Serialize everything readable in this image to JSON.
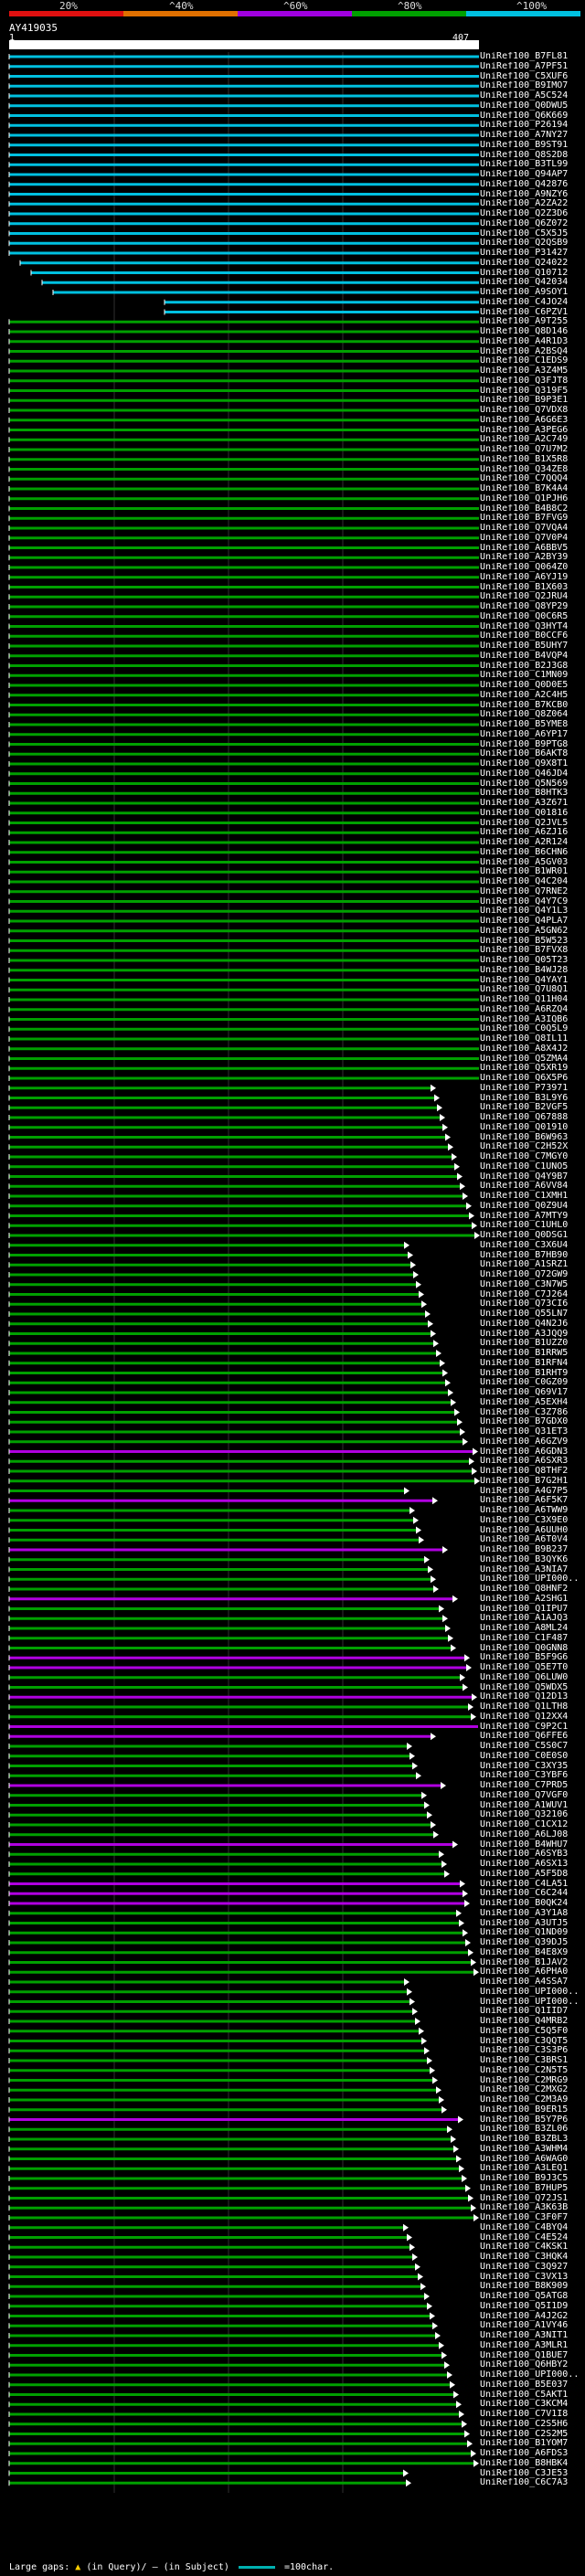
{
  "legend": {
    "labels": [
      "20%",
      "^40%",
      "^60%",
      "^80%",
      "^100%"
    ],
    "colors": [
      "#e01010",
      "#e07000",
      "#a000e0",
      "#00a000",
      "#00c0e0"
    ]
  },
  "query": {
    "title": "AY419035",
    "start": "1",
    "end": "407"
  },
  "hits": [
    "UniRef100_B7FL81",
    "UniRef100_A7PF51",
    "UniRef100_C5XUF6",
    "UniRef100_B9IMO7",
    "UniRef100_A5C524",
    "UniRef100_Q0DWU5",
    "UniRef100_Q6K669",
    "UniRef100_P26194",
    "UniRef100_A7NY27",
    "UniRef100_B9ST91",
    "UniRef100_Q8S2D8",
    "UniRef100_B3TL99",
    "UniRef100_Q94AP7",
    "UniRef100_Q42876",
    "UniRef100_A9NZY6",
    "UniRef100_A2ZA22",
    "UniRef100_Q2Z3D6",
    "UniRef100_Q6Z072",
    "UniRef100_C5X5J5",
    "UniRef100_Q2QSB9",
    "UniRef100_P31427",
    "UniRef100_Q24022",
    "UniRef100_Q10712",
    "UniRef100_Q42034",
    "UniRef100_A9SOY1",
    "UniRef100_C4JO24",
    "UniRef100_C6PZV1",
    "UniRef100_A9T255",
    "UniRef100_Q8D146",
    "UniRef100_A4R1D3",
    "UniRef100_A2BSQ4",
    "UniRef100_C1EDS9",
    "UniRef100_A3Z4M5",
    "UniRef100_Q3FJT8",
    "UniRef100_Q319F5",
    "UniRef100_B9P3E1",
    "UniRef100_Q7VDX8",
    "UniRef100_A6G6E3",
    "UniRef100_A3PEG6",
    "UniRef100_A2C749",
    "UniRef100_Q7U7M2",
    "UniRef100_B1X5R8",
    "UniRef100_Q34ZE8",
    "UniRef100_C7QQQ4",
    "UniRef100_B7K4A4",
    "UniRef100_Q1PJH6",
    "UniRef100_B4B8C2",
    "UniRef100_B7FVG9",
    "UniRef100_Q7VQA4",
    "UniRef100_Q7V0P4",
    "UniRef100_A6BBV5",
    "UniRef100_A2BY39",
    "UniRef100_Q064Z0",
    "UniRef100_A6YJ19",
    "UniRef100_B1X603",
    "UniRef100_Q2JRU4",
    "UniRef100_Q8YP29",
    "UniRef100_Q0C6R5",
    "UniRef100_Q3HYT4",
    "UniRef100_B0CCF6",
    "UniRef100_B5UHY7",
    "UniRef100_B4VQP4",
    "UniRef100_B2J3G8",
    "UniRef100_C1MN09",
    "UniRef100_Q0D0E5",
    "UniRef100_A2C4H5",
    "UniRef100_B7KCB0",
    "UniRef100_Q8Z064",
    "UniRef100_B5YME8",
    "UniRef100_A6YP17",
    "UniRef100_B9PTG8",
    "UniRef100_B6AKT8",
    "UniRef100_Q9X8T1",
    "UniRef100_Q46JD4",
    "UniRef100_Q5N569",
    "UniRef100_B8HTK3",
    "UniRef100_A3Z671",
    "UniRef100_Q01816",
    "UniRef100_Q2JVL5",
    "UniRef100_A6ZJ16",
    "UniRef100_A2R124",
    "UniRef100_B6CHN6",
    "UniRef100_A5GV03",
    "UniRef100_B1WR01",
    "UniRef100_Q4C204",
    "UniRef100_Q7RNE2",
    "UniRef100_Q4Y7C9",
    "UniRef100_Q4Y1L3",
    "UniRef100_Q4PLA7",
    "UniRef100_A5GN62",
    "UniRef100_B5W523",
    "UniRef100_B7FVX8",
    "UniRef100_Q05T23",
    "UniRef100_B4WJ28",
    "UniRef100_Q4YAY1",
    "UniRef100_Q7U8Q1",
    "UniRef100_Q11H04",
    "UniRef100_A6RZQ4",
    "UniRef100_A3IQB6",
    "UniRef100_C0Q5L9",
    "UniRef100_Q8IL11",
    "UniRef100_A8X4J2",
    "UniRef100_Q5ZMA4",
    "UniRef100_Q5XR19",
    "UniRef100_Q6X5P6",
    "UniRef100_P73971",
    "UniRef100_B3L9Y6",
    "UniRef100_B2VGF5",
    "UniRef100_Q67888",
    "UniRef100_Q01910",
    "UniRef100_B6W963",
    "UniRef100_C2H52X",
    "UniRef100_C7MGY0",
    "UniRef100_C1UNO5",
    "UniRef100_Q4Y9B7",
    "UniRef100_A6VV84",
    "UniRef100_C1XMH1",
    "UniRef100_Q0Z9U4",
    "UniRef100_A7MTY9",
    "UniRef100_C1UHL0",
    "UniRef100_Q0DSG1",
    "UniRef100_C3X6U4",
    "UniRef100_B7HB90",
    "UniRef100_A1SRZ1",
    "UniRef100_Q72GW9",
    "UniRef100_C3N7W5",
    "UniRef100_C7J264",
    "UniRef100_Q73CI6",
    "UniRef100_Q55LN7",
    "UniRef100_Q4N2J6",
    "UniRef100_A3JQQ9",
    "UniRef100_B1UZZ0",
    "UniRef100_B1RRW5",
    "UniRef100_B1RFN4",
    "UniRef100_B1RHT9",
    "UniRef100_C0GZ09",
    "UniRef100_Q69V17",
    "UniRef100_A5EXH4",
    "UniRef100_C3Z786",
    "UniRef100_B7GDX0",
    "UniRef100_Q31ET3",
    "UniRef100_A6GZV9",
    "UniRef100_A6GDN3",
    "UniRef100_A6SXR3",
    "UniRef100_Q8THF2",
    "UniRef100_B7G2H1",
    "UniRef100_A4G7P5",
    "UniRef100_A6F5K7",
    "UniRef100_A6TWW9",
    "UniRef100_C3X9E0",
    "UniRef100_A6UUH0",
    "UniRef100_A6T0V4",
    "UniRef100_B9B237",
    "UniRef100_B3QYK6",
    "UniRef100_A3NIA7",
    "UniRef100_UPI000..",
    "UniRef100_Q8HNF2",
    "UniRef100_A2SHG1",
    "UniRef100_Q1IPU7",
    "UniRef100_A1AJQ3",
    "UniRef100_A8ML24",
    "UniRef100_C1F487",
    "UniRef100_Q0GNN8",
    "UniRef100_B5F9G6",
    "UniRef100_Q5E7T0",
    "UniRef100_Q6LUW0",
    "UniRef100_Q5WDX5",
    "UniRef100_Q12D13",
    "UniRef100_Q1LTH8",
    "UniRef100_Q12XX4",
    "UniRef100_C9P2C1",
    "UniRef100_Q6FFE6",
    "UniRef100_C5S0C7",
    "UniRef100_C0E0S0",
    "UniRef100_C3XY35",
    "UniRef100_C3YBF6",
    "UniRef100_C7PRD5",
    "UniRef100_Q7VGF0",
    "UniRef100_A1WUV1",
    "UniRef100_Q32106",
    "UniRef100_C1CX12",
    "UniRef100_A6LJ08",
    "UniRef100_B4WHU7",
    "UniRef100_A6SYB3",
    "UniRef100_A6SX13",
    "UniRef100_A5F5D8",
    "UniRef100_C4LA51",
    "UniRef100_C6C244",
    "UniRef100_B0QK24",
    "UniRef100_A3Y1A8",
    "UniRef100_A3UTJ5",
    "UniRef100_Q1ND09",
    "UniRef100_Q39DJ5",
    "UniRef100_B4E8X9",
    "UniRef100_B1JAV2",
    "UniRef100_A6PHA0",
    "UniRef100_A4SSA7",
    "UniRef100_UPI000..",
    "UniRef100_UPI000..",
    "UniRef100_Q1IID7",
    "UniRef100_Q4MRB2",
    "UniRef100_C5Q5F0",
    "UniRef100_C3QQT5",
    "UniRef100_C3S3P6",
    "UniRef100_C3BRS1",
    "UniRef100_C2N5T5",
    "UniRef100_C2MRG9",
    "UniRef100_C2MXG2",
    "UniRef100_C2M3A9",
    "UniRef100_B9ER15",
    "UniRef100_B5Y7P6",
    "UniRef100_B3ZL06",
    "UniRef100_B3ZBL3",
    "UniRef100_A3WHM4",
    "UniRef100_A6WAG0",
    "UniRef100_A3LEQ1",
    "UniRef100_B9J3C5",
    "UniRef100_B7HUP5",
    "UniRef100_Q72JS1",
    "UniRef100_A3K63B",
    "UniRef100_C3F0F7",
    "UniRef100_C4BYQ4",
    "UniRef100_C4E524",
    "UniRef100_C4KSK1",
    "UniRef100_C3HQK4",
    "UniRef100_C3Q927",
    "UniRef100_C3VX13",
    "UniRef100_B8K909",
    "UniRef100_Q5ATG8",
    "UniRef100_Q5I1D9",
    "UniRef100_A4J2G2",
    "UniRef100_A1VY46",
    "UniRef100_A3NIT1",
    "UniRef100_A3MLR1",
    "UniRef100_Q1BUE7",
    "UniRef100_Q6HBY2",
    "UniRef100_UPI000..",
    "UniRef100_B5E037",
    "UniRef100_C5AKT1",
    "UniRef100_C3KCM4",
    "UniRef100_C7V1I8",
    "UniRef100_C2S5H6",
    "UniRef100_C2S2M5",
    "UniRef100_B1YOM7",
    "UniRef100_A6FDS3",
    "UniRef100_B8HBK4",
    "UniRef100_C3JE53",
    "UniRef100_C6C7A3"
  ],
  "footer": {
    "large_gaps_label": "Large gaps:",
    "in_query": "(in Query)/",
    "in_subject": "(in Subject)",
    "scale_label": "=100char."
  }
}
